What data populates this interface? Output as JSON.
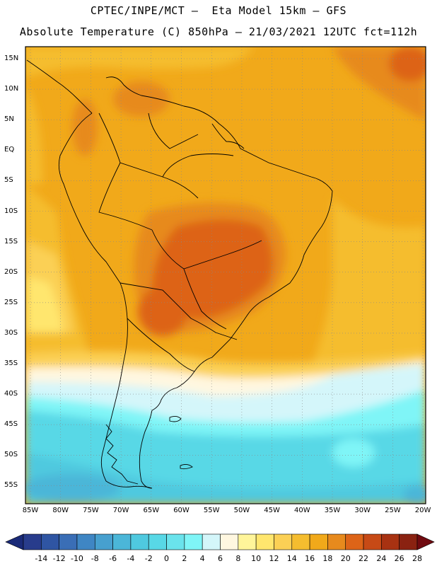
{
  "title_line1": "CPTEC/INPE/MCT –  Eta Model 15km – GFS",
  "title_line2": "Absolute Temperature (C) 850hPa – 21/03/2021 12UTC fct=112h",
  "lat_labels": [
    "15N",
    "10N",
    "5N",
    "EQ",
    "5S",
    "10S",
    "15S",
    "20S",
    "25S",
    "30S",
    "35S",
    "40S",
    "45S",
    "50S",
    "55S"
  ],
  "lon_labels": [
    "85W",
    "80W",
    "75W",
    "70W",
    "65W",
    "60W",
    "55W",
    "50W",
    "45W",
    "40W",
    "35W",
    "30W",
    "25W",
    "20W"
  ],
  "colorbar": {
    "labels": [
      "-14",
      "-12",
      "-10",
      "-8",
      "-6",
      "-4",
      "-2",
      "0",
      "2",
      "4",
      "6",
      "8",
      "10",
      "12",
      "14",
      "16",
      "18",
      "20",
      "22",
      "24",
      "26",
      "28"
    ],
    "colors": [
      "#283c8c",
      "#2f55a3",
      "#3a6eb6",
      "#3f86c4",
      "#47a0cf",
      "#4bb6d8",
      "#4fc9df",
      "#58d8e6",
      "#6ae3ec",
      "#7ff5f7",
      "#d4f6fa",
      "#fff7e0",
      "#fff59a",
      "#ffe66e",
      "#fbd055",
      "#f5bd2f",
      "#f1a91a",
      "#e78a1d",
      "#dd6418",
      "#c74a16",
      "#a83212",
      "#8a2211"
    ],
    "under_color": "#1a2a78",
    "over_color": "#700a10"
  }
}
